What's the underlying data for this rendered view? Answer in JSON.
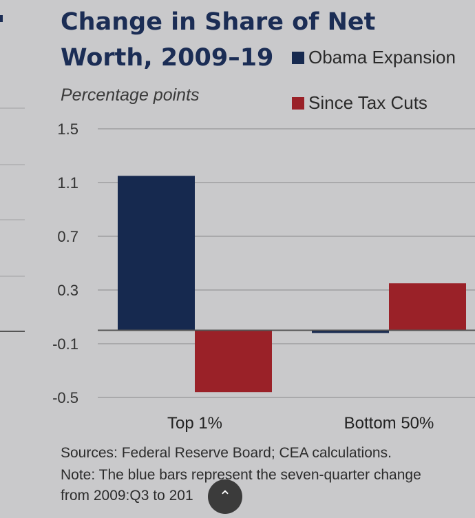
{
  "title": "Change in Share of Net Worth, 2009–19",
  "chart_data": {
    "type": "bar",
    "title": "Change in Share of Net Worth, 2009–19",
    "subtitle": "Percentage points",
    "categories": [
      "Top 1%",
      "Bottom 50%"
    ],
    "series": [
      {
        "name": "Obama Expansion",
        "color": "#16294f",
        "values": [
          1.15,
          -0.02
        ]
      },
      {
        "name": "Since Tax Cuts",
        "color": "#9a2128",
        "values": [
          -0.46,
          0.35
        ]
      }
    ],
    "yticks": [
      "1.5",
      "1.1",
      "0.7",
      "0.3",
      "-0.1",
      "-0.5"
    ],
    "ylim": [
      -0.5,
      1.5
    ],
    "grid": true,
    "legend": "top-right"
  },
  "footnotes": {
    "sources": "Sources: Federal Reserve Board; CEA calculations.",
    "note_line1": "Note: The blue bars represent the seven-quarter change",
    "note_line2": "from 2009:Q3 to 201"
  },
  "scroll_top_icon": "chevron-up-icon"
}
